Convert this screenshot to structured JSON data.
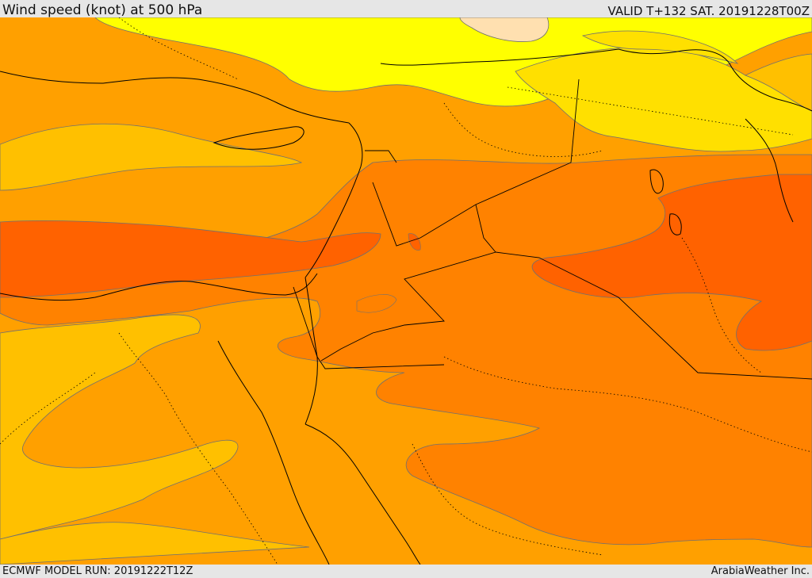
{
  "header": {
    "title": "Wind speed (knot) at 500 hPa",
    "valid_time": "VALID T+132 SAT. 20191228T00Z"
  },
  "footer": {
    "model_run": "ECMWF MODEL RUN: 20191222T12Z",
    "credit": "ArabiaWeather Inc."
  },
  "map": {
    "colors": {
      "light_orange": "#ffc000",
      "medium_orange": "#ffa000",
      "dark_orange": "#ff8200",
      "red_orange": "#ff6200",
      "yellow": "#ffff00",
      "gold": "#ffe000",
      "peach": "#ffe0b0",
      "contour": "#707070",
      "border": "#000000"
    }
  }
}
